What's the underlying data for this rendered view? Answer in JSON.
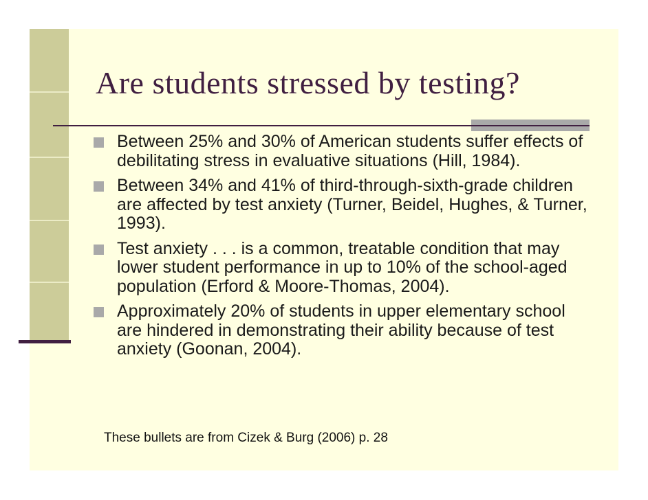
{
  "slide": {
    "title": "Are students stressed by testing?",
    "bullets": [
      "Between 25% and 30% of American students suffer effects of debilitating stress in evaluative situations (Hill, 1984).",
      "Between 34% and 41% of third-through-sixth-grade children are affected by test anxiety (Turner, Beidel, Hughes, & Turner, 1993).",
      "Test anxiety . . . is a common, treatable condition that may lower student performance in up to 10% of the school-aged population (Erford & Moore-Thomas, 2004).",
      "Approximately 20% of students in upper elementary school are hindered in demonstrating their ability because of test anxiety (Goonan, 2004)."
    ],
    "footnote": "These bullets are from Cizek & Burg (2006) p. 28"
  },
  "colors": {
    "page_background": "#ffffff",
    "slide_background": "#ffffe1",
    "sidebar_olive": "#cccc99",
    "accent_purple": "#401f41",
    "bullet_gray": "#a9a9a9",
    "body_text": "#1a1a1a"
  }
}
